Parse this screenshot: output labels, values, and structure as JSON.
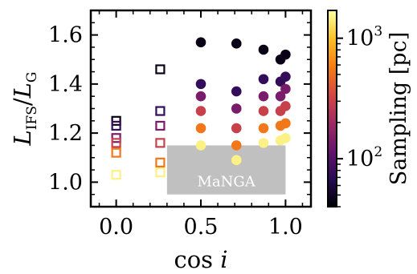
{
  "chart_data": {
    "type": "scatter",
    "xlabel": "cos i",
    "ylabel": "L_IFS/L_G",
    "xlim": [
      -0.15,
      1.15
    ],
    "ylim": [
      0.9,
      1.7
    ],
    "x_ticks": [
      {
        "value": 0.0,
        "label": "0.0"
      },
      {
        "value": 0.5,
        "label": "0.5"
      },
      {
        "value": 1.0,
        "label": "1.0"
      }
    ],
    "y_ticks": [
      {
        "value": 1.0,
        "label": "1.0"
      },
      {
        "value": 1.2,
        "label": "1.2"
      },
      {
        "value": 1.4,
        "label": "1.4"
      },
      {
        "value": 1.6,
        "label": "1.6"
      }
    ],
    "colorbar": {
      "label": "Sampling [pc]",
      "scale": "log",
      "range": [
        40,
        1700
      ],
      "ticks": [
        {
          "value": 100,
          "label": "10^2"
        },
        {
          "value": 1000,
          "label": "10^3"
        }
      ],
      "colormap": [
        "#000004",
        "#280b54",
        "#65156e",
        "#9f2a63",
        "#d44842",
        "#f57d15",
        "#fac228",
        "#fcffa4"
      ]
    },
    "shaded_region": {
      "label": "MaNGA",
      "x": [
        0.3,
        1.0
      ],
      "y": [
        0.95,
        1.15
      ],
      "color": "#c0c0c0"
    },
    "series": [
      {
        "marker": "square-open",
        "points": [
          {
            "x": 0.0,
            "y": 1.25,
            "c": 45
          },
          {
            "x": 0.0,
            "y": 1.23,
            "c": 75
          },
          {
            "x": 0.0,
            "y": 1.18,
            "c": 140
          },
          {
            "x": 0.0,
            "y": 1.16,
            "c": 300
          },
          {
            "x": 0.0,
            "y": 1.12,
            "c": 550
          },
          {
            "x": 0.0,
            "y": 1.03,
            "c": 1500
          },
          {
            "x": 0.26,
            "y": 1.46,
            "c": 45
          },
          {
            "x": 0.26,
            "y": 1.29,
            "c": 75
          },
          {
            "x": 0.26,
            "y": 1.23,
            "c": 140
          },
          {
            "x": 0.26,
            "y": 1.16,
            "c": 300
          },
          {
            "x": 0.26,
            "y": 1.08,
            "c": 550
          },
          {
            "x": 0.26,
            "y": 1.04,
            "c": 1500
          }
        ]
      },
      {
        "marker": "circle-filled",
        "points": [
          {
            "x": 0.5,
            "y": 1.57,
            "c": 45
          },
          {
            "x": 0.5,
            "y": 1.4,
            "c": 75
          },
          {
            "x": 0.5,
            "y": 1.35,
            "c": 140
          },
          {
            "x": 0.5,
            "y": 1.29,
            "c": 300
          },
          {
            "x": 0.5,
            "y": 1.22,
            "c": 550
          },
          {
            "x": 0.5,
            "y": 1.15,
            "c": 1500
          },
          {
            "x": 0.71,
            "y": 1.565,
            "c": 45
          },
          {
            "x": 0.71,
            "y": 1.37,
            "c": 75
          },
          {
            "x": 0.71,
            "y": 1.3,
            "c": 140
          },
          {
            "x": 0.71,
            "y": 1.22,
            "c": 300
          },
          {
            "x": 0.71,
            "y": 1.15,
            "c": 550
          },
          {
            "x": 0.71,
            "y": 1.09,
            "c": 1500
          },
          {
            "x": 0.87,
            "y": 1.54,
            "c": 45
          },
          {
            "x": 0.87,
            "y": 1.42,
            "c": 75
          },
          {
            "x": 0.87,
            "y": 1.35,
            "c": 140
          },
          {
            "x": 0.87,
            "y": 1.29,
            "c": 300
          },
          {
            "x": 0.87,
            "y": 1.22,
            "c": 550
          },
          {
            "x": 0.87,
            "y": 1.16,
            "c": 1500
          },
          {
            "x": 0.97,
            "y": 1.5,
            "c": 45
          },
          {
            "x": 0.97,
            "y": 1.41,
            "c": 75
          },
          {
            "x": 0.97,
            "y": 1.35,
            "c": 140
          },
          {
            "x": 0.97,
            "y": 1.29,
            "c": 300
          },
          {
            "x": 0.97,
            "y": 1.23,
            "c": 550
          },
          {
            "x": 0.97,
            "y": 1.17,
            "c": 1500
          },
          {
            "x": 1.0,
            "y": 1.52,
            "c": 45
          },
          {
            "x": 1.0,
            "y": 1.43,
            "c": 75
          },
          {
            "x": 1.0,
            "y": 1.38,
            "c": 140
          },
          {
            "x": 1.0,
            "y": 1.31,
            "c": 300
          },
          {
            "x": 1.0,
            "y": 1.24,
            "c": 550
          },
          {
            "x": 1.0,
            "y": 1.18,
            "c": 1500
          }
        ]
      }
    ]
  }
}
